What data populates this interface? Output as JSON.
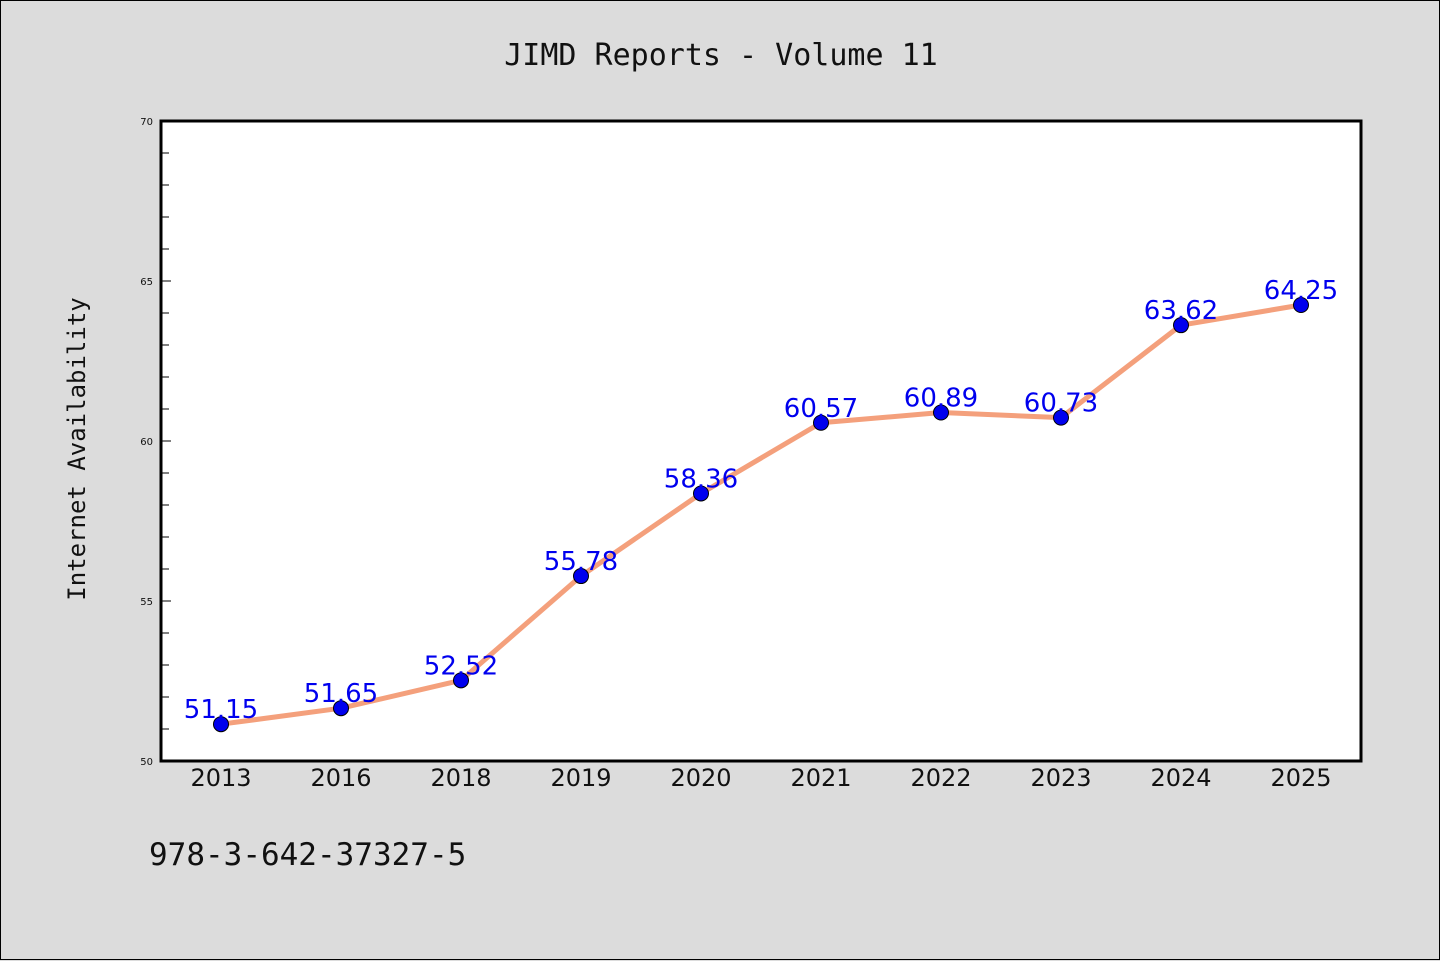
{
  "chart_data": {
    "type": "line",
    "title": "JIMD Reports - Volume 11",
    "xlabel": "",
    "ylabel": "Internet Availability",
    "categories": [
      "2013",
      "2016",
      "2018",
      "2019",
      "2020",
      "2021",
      "2022",
      "2023",
      "2024",
      "2025"
    ],
    "series": [
      {
        "values": [
          51.15,
          51.65,
          52.52,
          55.78,
          58.36,
          60.57,
          60.89,
          60.73,
          63.62,
          64.25
        ],
        "line_color": "#f4a07c",
        "marker_color": "#0000ee",
        "label_color": "#0000ee"
      }
    ],
    "ylim": [
      50,
      70
    ],
    "yticks": [
      50,
      55,
      60,
      65,
      70
    ],
    "grid": false,
    "legend": "none"
  },
  "footnote": "978-3-642-37327-5",
  "colors": {
    "background": "#dcdcdc",
    "plot_background": "#ffffff"
  }
}
